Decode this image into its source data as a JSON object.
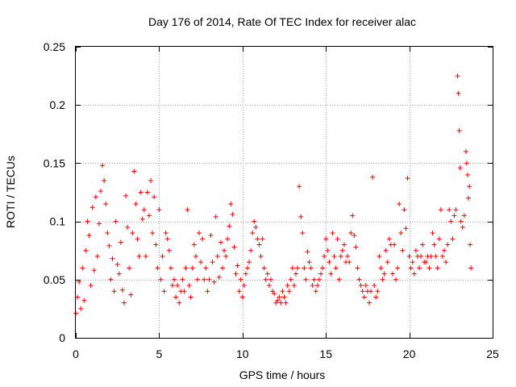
{
  "chart_data": {
    "type": "scatter",
    "title": "Day 176 of 2014, Rate Of TEC Index for receiver alac",
    "xlabel": "GPS time / hours",
    "ylabel": "ROTI / TECUs",
    "xlim": [
      0,
      25
    ],
    "ylim": [
      0,
      0.25
    ],
    "xticks": [
      0,
      5,
      10,
      15,
      20,
      25
    ],
    "xtick_labels": [
      "0",
      "5",
      "10",
      "15",
      "20",
      "25"
    ],
    "yticks": [
      0,
      0.05,
      0.1,
      0.15,
      0.2,
      0.25
    ],
    "ytick_labels": [
      "0",
      "0.05",
      "0.1",
      "0.15",
      "0.2",
      "0.25"
    ],
    "grid": true,
    "marker": "+",
    "color": "#ff0000",
    "series": [
      {
        "name": "ROTI",
        "points": [
          [
            0.0,
            0.021
          ],
          [
            0.1,
            0.035
          ],
          [
            0.2,
            0.048
          ],
          [
            0.3,
            0.025
          ],
          [
            0.4,
            0.06
          ],
          [
            0.5,
            0.032
          ],
          [
            0.6,
            0.075
          ],
          [
            0.7,
            0.1
          ],
          [
            0.8,
            0.088
          ],
          [
            0.9,
            0.045
          ],
          [
            1.0,
            0.112
          ],
          [
            1.1,
            0.058
          ],
          [
            1.2,
            0.121
          ],
          [
            1.3,
            0.07
          ],
          [
            1.4,
            0.098
          ],
          [
            1.5,
            0.126
          ],
          [
            1.6,
            0.148
          ],
          [
            1.7,
            0.135
          ],
          [
            1.8,
            0.115
          ],
          [
            1.9,
            0.09
          ],
          [
            2.0,
            0.079
          ],
          [
            2.1,
            0.05
          ],
          [
            2.2,
            0.068
          ],
          [
            2.3,
            0.04
          ],
          [
            2.4,
            0.1
          ],
          [
            2.5,
            0.063
          ],
          [
            2.6,
            0.055
          ],
          [
            2.7,
            0.082
          ],
          [
            2.8,
            0.041
          ],
          [
            2.9,
            0.03
          ],
          [
            3.0,
            0.122
          ],
          [
            3.1,
            0.095
          ],
          [
            3.2,
            0.06
          ],
          [
            3.3,
            0.037
          ],
          [
            3.4,
            0.09
          ],
          [
            3.5,
            0.143
          ],
          [
            3.6,
            0.115
          ],
          [
            3.7,
            0.085
          ],
          [
            3.8,
            0.07
          ],
          [
            3.9,
            0.125
          ],
          [
            4.0,
            0.102
          ],
          [
            4.1,
            0.11
          ],
          [
            4.2,
            0.07
          ],
          [
            4.3,
            0.125
          ],
          [
            4.4,
            0.105
          ],
          [
            4.5,
            0.135
          ],
          [
            4.6,
            0.09
          ],
          [
            4.7,
            0.121
          ],
          [
            4.8,
            0.08
          ],
          [
            4.9,
            0.06
          ],
          [
            5.0,
            0.11
          ],
          [
            5.1,
            0.05
          ],
          [
            5.2,
            0.07
          ],
          [
            5.3,
            0.04
          ],
          [
            5.4,
            0.09
          ],
          [
            5.5,
            0.085
          ],
          [
            5.6,
            0.075
          ],
          [
            5.7,
            0.06
          ],
          [
            5.8,
            0.045
          ],
          [
            5.9,
            0.05
          ],
          [
            6.0,
            0.035
          ],
          [
            6.1,
            0.045
          ],
          [
            6.2,
            0.03
          ],
          [
            6.3,
            0.04
          ],
          [
            6.4,
            0.05
          ],
          [
            6.5,
            0.04
          ],
          [
            6.6,
            0.06
          ],
          [
            6.7,
            0.11
          ],
          [
            6.8,
            0.045
          ],
          [
            6.9,
            0.035
          ],
          [
            7.0,
            0.06
          ],
          [
            7.1,
            0.08
          ],
          [
            7.2,
            0.07
          ],
          [
            7.3,
            0.05
          ],
          [
            7.4,
            0.09
          ],
          [
            7.5,
            0.065
          ],
          [
            7.6,
            0.085
          ],
          [
            7.7,
            0.05
          ],
          [
            7.8,
            0.06
          ],
          [
            7.9,
            0.04
          ],
          [
            8.0,
            0.05
          ],
          [
            8.1,
            0.088
          ],
          [
            8.2,
            0.065
          ],
          [
            8.3,
            0.048
          ],
          [
            8.4,
            0.104
          ],
          [
            8.5,
            0.07
          ],
          [
            8.6,
            0.052
          ],
          [
            8.7,
            0.082
          ],
          [
            8.8,
            0.06
          ],
          [
            8.9,
            0.075
          ],
          [
            9.0,
            0.07
          ],
          [
            9.1,
            0.085
          ],
          [
            9.2,
            0.096
          ],
          [
            9.3,
            0.115
          ],
          [
            9.4,
            0.106
          ],
          [
            9.5,
            0.078
          ],
          [
            9.6,
            0.055
          ],
          [
            9.7,
            0.062
          ],
          [
            9.8,
            0.04
          ],
          [
            9.9,
            0.05
          ],
          [
            10.0,
            0.035
          ],
          [
            10.1,
            0.045
          ],
          [
            10.2,
            0.055
          ],
          [
            10.3,
            0.06
          ],
          [
            10.4,
            0.065
          ],
          [
            10.5,
            0.075
          ],
          [
            10.6,
            0.09
          ],
          [
            10.7,
            0.1
          ],
          [
            10.8,
            0.095
          ],
          [
            10.9,
            0.085
          ],
          [
            11.0,
            0.08
          ],
          [
            11.1,
            0.07
          ],
          [
            11.2,
            0.085
          ],
          [
            11.3,
            0.06
          ],
          [
            11.4,
            0.05
          ],
          [
            11.5,
            0.055
          ],
          [
            11.6,
            0.045
          ],
          [
            11.7,
            0.05
          ],
          [
            11.8,
            0.04
          ],
          [
            11.9,
            0.038
          ],
          [
            12.0,
            0.03
          ],
          [
            12.1,
            0.032
          ],
          [
            12.2,
            0.035
          ],
          [
            12.3,
            0.03
          ],
          [
            12.4,
            0.04
          ],
          [
            12.5,
            0.035
          ],
          [
            12.6,
            0.03
          ],
          [
            12.7,
            0.045
          ],
          [
            12.8,
            0.04
          ],
          [
            12.9,
            0.05
          ],
          [
            13.0,
            0.06
          ],
          [
            13.1,
            0.045
          ],
          [
            13.2,
            0.055
          ],
          [
            13.3,
            0.06
          ],
          [
            13.4,
            0.13
          ],
          [
            13.5,
            0.104
          ],
          [
            13.6,
            0.09
          ],
          [
            13.7,
            0.06
          ],
          [
            13.8,
            0.05
          ],
          [
            13.9,
            0.074
          ],
          [
            14.0,
            0.065
          ],
          [
            14.1,
            0.06
          ],
          [
            14.2,
            0.045
          ],
          [
            14.3,
            0.05
          ],
          [
            14.4,
            0.04
          ],
          [
            14.5,
            0.045
          ],
          [
            14.6,
            0.05
          ],
          [
            14.7,
            0.055
          ],
          [
            14.8,
            0.06
          ],
          [
            14.9,
            0.07
          ],
          [
            15.0,
            0.085
          ],
          [
            15.1,
            0.075
          ],
          [
            15.2,
            0.065
          ],
          [
            15.3,
            0.055
          ],
          [
            15.4,
            0.09
          ],
          [
            15.5,
            0.07
          ],
          [
            15.6,
            0.06
          ],
          [
            15.7,
            0.085
          ],
          [
            15.8,
            0.05
          ],
          [
            15.9,
            0.07
          ],
          [
            16.0,
            0.075
          ],
          [
            16.1,
            0.08
          ],
          [
            16.2,
            0.065
          ],
          [
            16.3,
            0.07
          ],
          [
            16.4,
            0.065
          ],
          [
            16.5,
            0.09
          ],
          [
            16.6,
            0.105
          ],
          [
            16.7,
            0.088
          ],
          [
            16.8,
            0.078
          ],
          [
            16.9,
            0.06
          ],
          [
            17.0,
            0.05
          ],
          [
            17.1,
            0.045
          ],
          [
            17.2,
            0.04
          ],
          [
            17.3,
            0.035
          ],
          [
            17.4,
            0.045
          ],
          [
            17.5,
            0.04
          ],
          [
            17.6,
            0.03
          ],
          [
            17.7,
            0.04
          ],
          [
            17.8,
            0.138
          ],
          [
            17.9,
            0.045
          ],
          [
            18.0,
            0.035
          ],
          [
            18.1,
            0.04
          ],
          [
            18.2,
            0.07
          ],
          [
            18.3,
            0.06
          ],
          [
            18.4,
            0.05
          ],
          [
            18.5,
            0.055
          ],
          [
            18.6,
            0.075
          ],
          [
            18.7,
            0.065
          ],
          [
            18.8,
            0.085
          ],
          [
            18.9,
            0.08
          ],
          [
            19.0,
            0.055
          ],
          [
            19.1,
            0.08
          ],
          [
            19.2,
            0.05
          ],
          [
            19.3,
            0.06
          ],
          [
            19.4,
            0.115
          ],
          [
            19.5,
            0.09
          ],
          [
            19.6,
            0.075
          ],
          [
            19.7,
            0.11
          ],
          [
            19.8,
            0.094
          ],
          [
            19.9,
            0.137
          ],
          [
            20.0,
            0.07
          ],
          [
            20.1,
            0.06
          ],
          [
            20.2,
            0.065
          ],
          [
            20.3,
            0.055
          ],
          [
            20.4,
            0.075
          ],
          [
            20.5,
            0.07
          ],
          [
            20.6,
            0.06
          ],
          [
            20.7,
            0.07
          ],
          [
            20.8,
            0.08
          ],
          [
            20.9,
            0.065
          ],
          [
            21.0,
            0.065
          ],
          [
            21.1,
            0.07
          ],
          [
            21.2,
            0.06
          ],
          [
            21.3,
            0.07
          ],
          [
            21.4,
            0.09
          ],
          [
            21.5,
            0.08
          ],
          [
            21.6,
            0.07
          ],
          [
            21.7,
            0.06
          ],
          [
            21.8,
            0.085
          ],
          [
            21.9,
            0.11
          ],
          [
            22.0,
            0.07
          ],
          [
            22.1,
            0.075
          ],
          [
            22.2,
            0.065
          ],
          [
            22.3,
            0.08
          ],
          [
            22.4,
            0.11
          ],
          [
            22.5,
            0.1
          ],
          [
            22.6,
            0.085
          ],
          [
            22.7,
            0.105
          ],
          [
            22.8,
            0.11
          ],
          [
            22.9,
            0.225
          ],
          [
            22.95,
            0.21
          ],
          [
            23.0,
            0.178
          ],
          [
            23.05,
            0.146
          ],
          [
            23.1,
            0.1
          ],
          [
            23.2,
            0.095
          ],
          [
            23.3,
            0.105
          ],
          [
            23.4,
            0.16
          ],
          [
            23.45,
            0.15
          ],
          [
            23.5,
            0.14
          ],
          [
            23.55,
            0.12
          ],
          [
            23.6,
            0.13
          ],
          [
            23.65,
            0.08
          ],
          [
            23.7,
            0.06
          ]
        ]
      }
    ]
  }
}
